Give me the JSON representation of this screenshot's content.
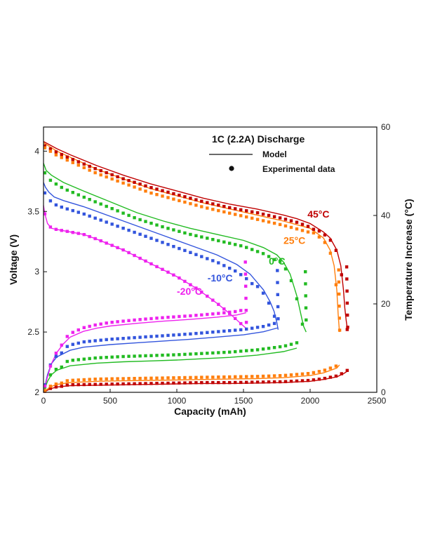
{
  "chart_data": {
    "type": "line",
    "title": "1C (2.2A) Discharge",
    "xlabel": "Capacity (mAh)",
    "ylabel": "Voltage (V)",
    "y2label": "Temperature Increase (°C)",
    "xlim": [
      0,
      2500
    ],
    "ylim": [
      2,
      4.2
    ],
    "y2lim": [
      0,
      60
    ],
    "x_ticks": [
      "0",
      "500",
      "1000",
      "1500",
      "2000",
      "2500"
    ],
    "x_tick_values": [
      0,
      500,
      1000,
      1500,
      2000,
      2500
    ],
    "y_ticks": [
      "2",
      "2.5",
      "3",
      "3.5",
      "4"
    ],
    "y_tick_values": [
      2,
      2.5,
      3,
      3.5,
      4
    ],
    "y2_ticks": [
      "0",
      "20",
      "40",
      "60"
    ],
    "y2_tick_values": [
      0,
      20,
      40,
      60
    ],
    "legend": {
      "placement": "top-right",
      "model_label": "Model",
      "experimental_label": "Experimental data"
    },
    "series": [
      {
        "name": "45°C",
        "label": "45°C",
        "color": "#c00000",
        "label_at": [
          1980,
          3.45
        ],
        "voltage": {
          "x": [
            0,
            100,
            200,
            400,
            600,
            800,
            1000,
            1200,
            1400,
            1600,
            1800,
            1900,
            2000,
            2100,
            2150,
            2200,
            2230,
            2250,
            2260,
            2270,
            2280
          ],
          "y": [
            4.08,
            4.02,
            3.97,
            3.88,
            3.8,
            3.73,
            3.67,
            3.61,
            3.56,
            3.52,
            3.47,
            3.44,
            3.4,
            3.33,
            3.28,
            3.18,
            3.05,
            2.85,
            2.7,
            2.6,
            2.52
          ]
        },
        "temperature": {
          "x": [
            0,
            50,
            100,
            200,
            400,
            600,
            800,
            1000,
            1200,
            1400,
            1600,
            1800,
            2000,
            2100,
            2200,
            2250,
            2280
          ],
          "y": [
            0,
            0.8,
            1.2,
            1.5,
            1.6,
            1.7,
            1.8,
            1.9,
            2.0,
            2.0,
            2.1,
            2.2,
            2.5,
            2.9,
            3.5,
            4.2,
            4.8
          ]
        }
      },
      {
        "name": "25°C",
        "label": "25°C",
        "color": "#ff7f0e",
        "label_at": [
          1800,
          3.23
        ],
        "voltage": {
          "x": [
            0,
            100,
            200,
            400,
            600,
            800,
            1000,
            1200,
            1400,
            1600,
            1800,
            1900,
            2000,
            2100,
            2150,
            2180,
            2200,
            2210,
            2220
          ],
          "y": [
            4.07,
            4.0,
            3.95,
            3.85,
            3.77,
            3.69,
            3.63,
            3.57,
            3.52,
            3.47,
            3.42,
            3.39,
            3.36,
            3.28,
            3.18,
            3.05,
            2.85,
            2.65,
            2.5
          ]
        },
        "temperature": {
          "x": [
            0,
            50,
            100,
            200,
            400,
            600,
            800,
            1000,
            1200,
            1400,
            1600,
            1800,
            2000,
            2100,
            2200,
            2220
          ],
          "y": [
            0,
            1.2,
            1.8,
            2.2,
            2.5,
            2.6,
            2.7,
            2.8,
            2.9,
            3.0,
            3.1,
            3.3,
            3.8,
            4.4,
            5.5,
            6.2
          ]
        }
      },
      {
        "name": "0°C",
        "label": "0°C",
        "color": "#22bb22",
        "label_at": [
          1690,
          3.06
        ],
        "voltage": {
          "x": [
            0,
            20,
            60,
            150,
            300,
            500,
            700,
            900,
            1100,
            1300,
            1500,
            1650,
            1750,
            1800,
            1850,
            1900,
            1930,
            1950,
            1970
          ],
          "y": [
            3.9,
            3.84,
            3.8,
            3.74,
            3.67,
            3.58,
            3.49,
            3.42,
            3.36,
            3.31,
            3.26,
            3.2,
            3.14,
            3.08,
            2.98,
            2.8,
            2.65,
            2.55,
            2.5
          ]
        },
        "temperature": {
          "x": [
            0,
            30,
            60,
            100,
            200,
            400,
            600,
            800,
            1000,
            1200,
            1400,
            1600,
            1800,
            1900
          ],
          "y": [
            0,
            2.5,
            4.0,
            5.0,
            6.0,
            6.6,
            6.9,
            7.1,
            7.3,
            7.6,
            7.9,
            8.4,
            9.2,
            10.0
          ]
        }
      },
      {
        "name": "-10°C",
        "label": "-10°C",
        "color": "#3355dd",
        "label_at": [
          1230,
          2.92
        ],
        "voltage": {
          "x": [
            0,
            15,
            40,
            80,
            150,
            300,
            500,
            700,
            900,
            1100,
            1300,
            1450,
            1550,
            1650,
            1700,
            1730,
            1750,
            1760
          ],
          "y": [
            3.74,
            3.7,
            3.66,
            3.62,
            3.59,
            3.54,
            3.46,
            3.38,
            3.3,
            3.22,
            3.14,
            3.06,
            2.98,
            2.85,
            2.75,
            2.67,
            2.58,
            2.52
          ]
        },
        "temperature": {
          "x": [
            0,
            30,
            60,
            100,
            200,
            300,
            500,
            700,
            900,
            1100,
            1300,
            1500,
            1650,
            1760
          ],
          "y": [
            0,
            4.0,
            6.5,
            8.0,
            9.5,
            10.2,
            10.8,
            11.2,
            11.6,
            12.0,
            12.5,
            13.0,
            13.7,
            14.6
          ]
        }
      },
      {
        "name": "-20°C",
        "label": "-20°C",
        "color": "#ee22ee",
        "label_at": [
          1000,
          2.81
        ],
        "voltage": {
          "x": [
            0,
            10,
            30,
            60,
            100,
            200,
            300,
            400,
            600,
            800,
            1000,
            1150,
            1300,
            1400,
            1450,
            1500,
            1520
          ],
          "y": [
            3.55,
            3.48,
            3.4,
            3.36,
            3.35,
            3.33,
            3.31,
            3.27,
            3.18,
            3.07,
            2.96,
            2.86,
            2.74,
            2.65,
            2.6,
            2.55,
            2.53
          ]
        },
        "temperature": {
          "x": [
            0,
            30,
            60,
            100,
            150,
            200,
            300,
            400,
            500,
            700,
            900,
            1100,
            1300,
            1450,
            1520
          ],
          "y": [
            0,
            3.5,
            6.5,
            9.0,
            11.0,
            12.5,
            13.8,
            14.5,
            15.0,
            15.6,
            16.1,
            16.5,
            17.0,
            17.5,
            18.0
          ]
        }
      }
    ]
  }
}
